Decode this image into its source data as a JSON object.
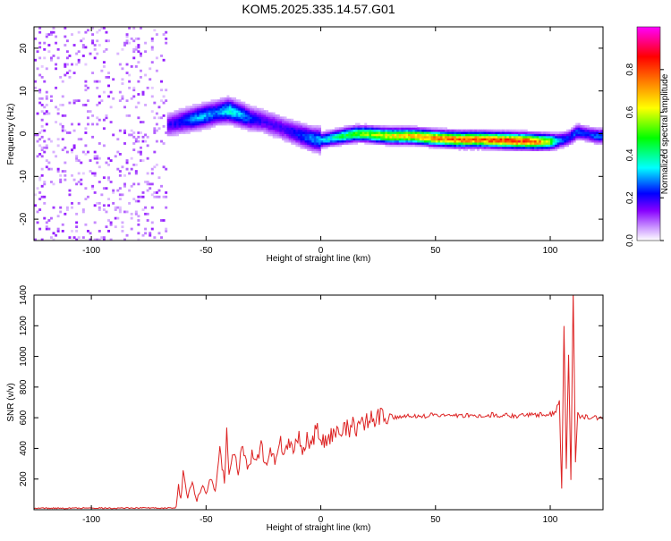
{
  "title": "KOM5.2025.335.14.57.G01",
  "chart_data": [
    {
      "type": "heatmap",
      "xlabel": "Height of straight line (km)",
      "ylabel": "Frequency (Hz)",
      "xlim": [
        -125,
        123
      ],
      "ylim": [
        -25,
        25
      ],
      "xticks": [
        -100,
        -50,
        0,
        50,
        100
      ],
      "yticks": [
        -20,
        -10,
        0,
        10,
        20
      ],
      "colorbar": {
        "label": "Normalized spectral amplitude",
        "range": [
          0,
          1
        ],
        "ticks": [
          0.0,
          0.2,
          0.4,
          0.6,
          0.8
        ],
        "colormap": [
          "#ffffff",
          "#cc99ff",
          "#8800ff",
          "#0000ff",
          "#00ffff",
          "#00ff00",
          "#ffff00",
          "#ff8000",
          "#ff0000",
          "#ff00ff"
        ]
      },
      "noise_region_x": [
        -125,
        -67
      ],
      "ridge": {
        "x": [
          -67,
          -60,
          -52,
          -45,
          -40,
          -35,
          -30,
          -25,
          -20,
          -15,
          -10,
          -5,
          0,
          5,
          10,
          15,
          20,
          25,
          30,
          40,
          50,
          60,
          70,
          80,
          90,
          95,
          100,
          103,
          108,
          112,
          116,
          120,
          123
        ],
        "freq": [
          2.0,
          3.0,
          4.0,
          5.0,
          5.5,
          4.5,
          3.5,
          3.0,
          2.0,
          1.0,
          0.0,
          -1.0,
          -1.5,
          -1.0,
          -0.5,
          0.0,
          0.0,
          -0.3,
          -0.5,
          -0.5,
          -1.0,
          -1.3,
          -1.3,
          -1.5,
          -1.7,
          -1.8,
          -1.8,
          -1.7,
          -1.0,
          0.5,
          0.0,
          -0.5,
          -0.5
        ],
        "amplitude": [
          0.2,
          0.25,
          0.35,
          0.3,
          0.4,
          0.35,
          0.25,
          0.2,
          0.2,
          0.2,
          0.25,
          0.3,
          0.35,
          0.4,
          0.5,
          0.55,
          0.6,
          0.65,
          0.7,
          0.75,
          0.8,
          0.85,
          0.85,
          0.9,
          0.9,
          0.8,
          0.6,
          0.35,
          0.25,
          0.3,
          0.25,
          0.3,
          0.3
        ]
      }
    },
    {
      "type": "line",
      "xlabel": "Height of straight line (km)",
      "ylabel": "SNR (v/v)",
      "xlim": [
        -125,
        123
      ],
      "ylim": [
        0,
        1400
      ],
      "xticks": [
        -100,
        -50,
        0,
        50,
        100
      ],
      "yticks": [
        200,
        400,
        600,
        800,
        1000,
        1200,
        1400
      ],
      "series": [
        {
          "color": "#dd2222",
          "x": [
            -125,
            -110,
            -100,
            -90,
            -80,
            -70,
            -63,
            -62,
            -61,
            -60,
            -58,
            -56,
            -54,
            -52,
            -50,
            -48,
            -46,
            -44,
            -42,
            -41,
            -40,
            -38,
            -36,
            -34,
            -32,
            -30,
            -28,
            -26,
            -24,
            -22,
            -20,
            -18,
            -16,
            -14,
            -12,
            -10,
            -8,
            -6,
            -4,
            -2,
            0,
            2,
            4,
            6,
            8,
            10,
            12,
            14,
            16,
            18,
            20,
            22,
            24,
            26,
            28,
            30,
            32,
            35,
            40,
            45,
            50,
            55,
            60,
            65,
            70,
            75,
            80,
            85,
            90,
            95,
            100,
            102,
            104,
            105,
            106,
            107,
            108,
            109,
            110,
            111,
            112,
            114,
            116,
            118,
            120,
            123
          ],
          "values": [
            10,
            10,
            12,
            10,
            12,
            11,
            12,
            150,
            60,
            240,
            90,
            180,
            70,
            150,
            110,
            200,
            130,
            400,
            180,
            490,
            210,
            380,
            250,
            420,
            280,
            360,
            300,
            430,
            280,
            390,
            320,
            460,
            350,
            440,
            380,
            490,
            370,
            480,
            400,
            540,
            430,
            460,
            470,
            510,
            480,
            540,
            520,
            580,
            530,
            560,
            570,
            600,
            590,
            610,
            600,
            620,
            605,
            610,
            615,
            610,
            620,
            615,
            612,
            618,
            610,
            620,
            615,
            612,
            618,
            620,
            625,
            630,
            700,
            120,
            1180,
            250,
            1000,
            200,
            1430,
            300,
            620,
            600,
            610,
            605,
            600,
            610
          ]
        }
      ]
    }
  ]
}
